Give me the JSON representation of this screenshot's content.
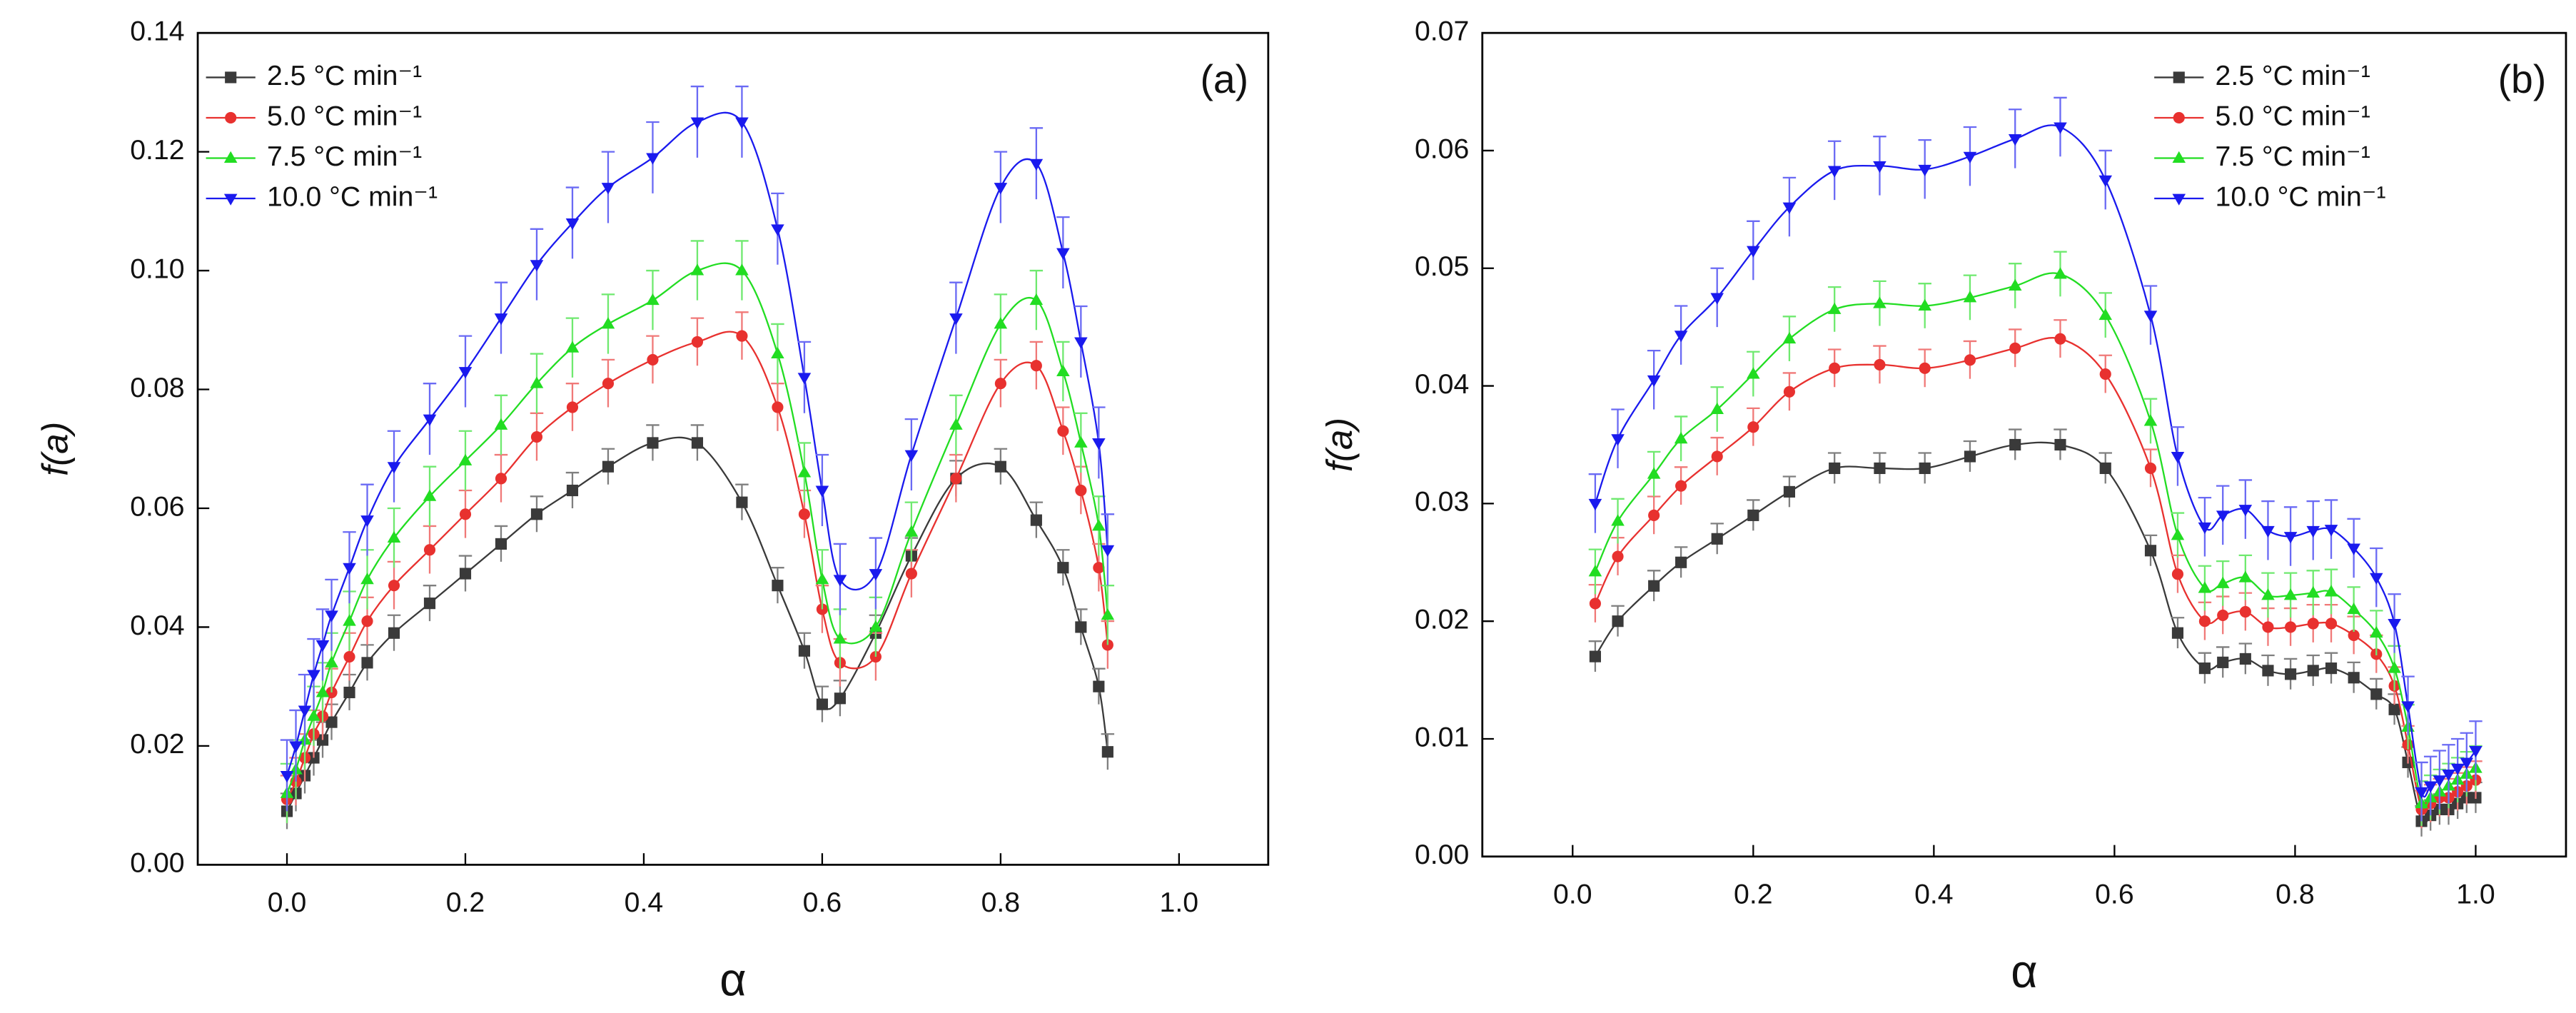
{
  "chart_data": [
    {
      "type": "line",
      "annotation": "(a)",
      "xlabel": "α",
      "ylabel": "f(a)",
      "legend": "upper left",
      "xlim": [
        -0.1,
        1.1
      ],
      "ylim": [
        0,
        0.14
      ],
      "xticks": [
        {
          "value": 0,
          "label": "0.0"
        },
        {
          "value": 0.2,
          "label": "0.2"
        },
        {
          "value": 0.4,
          "label": "0.4"
        },
        {
          "value": 0.6,
          "label": "0.6"
        },
        {
          "value": 0.8,
          "label": "0.8"
        },
        {
          "value": 1,
          "label": "1.0"
        }
      ],
      "yticks": [
        {
          "value": 0,
          "label": "0.00"
        },
        {
          "value": 0.02,
          "label": "0.02"
        },
        {
          "value": 0.04,
          "label": "0.04"
        },
        {
          "value": 0.06,
          "label": "0.06"
        },
        {
          "value": 0.08,
          "label": "0.08"
        },
        {
          "value": 0.1,
          "label": "0.10"
        },
        {
          "value": 0.12,
          "label": "0.12"
        },
        {
          "value": 0.14,
          "label": "0.14"
        }
      ],
      "x": [
        0.0,
        0.01,
        0.02,
        0.03,
        0.04,
        0.05,
        0.07,
        0.09,
        0.12,
        0.16,
        0.2,
        0.24,
        0.28,
        0.32,
        0.36,
        0.41,
        0.46,
        0.51,
        0.55,
        0.58,
        0.6,
        0.62,
        0.66,
        0.7,
        0.75,
        0.8,
        0.84,
        0.87,
        0.89,
        0.91,
        0.92
      ],
      "series": [
        {
          "name": "2.5 °C min⁻¹",
          "color": "#3a3a3a",
          "marker": "square",
          "error": 0.003,
          "values": [
            0.009,
            0.012,
            0.015,
            0.018,
            0.021,
            0.024,
            0.029,
            0.034,
            0.039,
            0.044,
            0.049,
            0.054,
            0.059,
            0.063,
            0.067,
            0.071,
            0.071,
            0.061,
            0.047,
            0.036,
            0.027,
            0.028,
            0.039,
            0.052,
            0.065,
            0.067,
            0.058,
            0.05,
            0.04,
            0.03,
            0.019
          ]
        },
        {
          "name": "5.0 °C min⁻¹",
          "color": "#e8312f",
          "marker": "circle",
          "error": 0.004,
          "values": [
            0.011,
            0.014,
            0.018,
            0.022,
            0.025,
            0.029,
            0.035,
            0.041,
            0.047,
            0.053,
            0.059,
            0.065,
            0.072,
            0.077,
            0.081,
            0.085,
            0.088,
            0.089,
            0.077,
            0.059,
            0.043,
            0.034,
            0.035,
            0.049,
            0.065,
            0.081,
            0.084,
            0.073,
            0.063,
            0.05,
            0.037
          ]
        },
        {
          "name": "7.5 °C min⁻¹",
          "color": "#22dd22",
          "marker": "triangle-up",
          "error": 0.005,
          "values": [
            0.012,
            0.016,
            0.021,
            0.025,
            0.029,
            0.034,
            0.041,
            0.048,
            0.055,
            0.062,
            0.068,
            0.074,
            0.081,
            0.087,
            0.091,
            0.095,
            0.1,
            0.1,
            0.086,
            0.066,
            0.048,
            0.038,
            0.04,
            0.056,
            0.074,
            0.091,
            0.095,
            0.083,
            0.071,
            0.057,
            0.042
          ]
        },
        {
          "name": "10.0 °C min⁻¹",
          "color": "#1a1aee",
          "marker": "triangle-down",
          "error": 0.006,
          "values": [
            0.015,
            0.02,
            0.026,
            0.032,
            0.037,
            0.042,
            0.05,
            0.058,
            0.067,
            0.075,
            0.083,
            0.092,
            0.101,
            0.108,
            0.114,
            0.119,
            0.125,
            0.125,
            0.107,
            0.082,
            0.063,
            0.048,
            0.049,
            0.069,
            0.092,
            0.114,
            0.118,
            0.103,
            0.088,
            0.071,
            0.053
          ]
        }
      ]
    },
    {
      "type": "line",
      "annotation": "(b)",
      "xlabel": "α",
      "ylabel": "f(a)",
      "legend": "upper right",
      "xlim": [
        -0.1,
        1.1
      ],
      "ylim": [
        0,
        0.07
      ],
      "xticks": [
        {
          "value": 0,
          "label": "0.0"
        },
        {
          "value": 0.2,
          "label": "0.2"
        },
        {
          "value": 0.4,
          "label": "0.4"
        },
        {
          "value": 0.6,
          "label": "0.6"
        },
        {
          "value": 0.8,
          "label": "0.8"
        },
        {
          "value": 1,
          "label": "1.0"
        }
      ],
      "yticks": [
        {
          "value": 0,
          "label": "0.00"
        },
        {
          "value": 0.01,
          "label": "0.01"
        },
        {
          "value": 0.02,
          "label": "0.02"
        },
        {
          "value": 0.03,
          "label": "0.03"
        },
        {
          "value": 0.04,
          "label": "0.04"
        },
        {
          "value": 0.05,
          "label": "0.05"
        },
        {
          "value": 0.06,
          "label": "0.06"
        },
        {
          "value": 0.07,
          "label": "0.07"
        }
      ],
      "x": [
        0.025,
        0.05,
        0.09,
        0.12,
        0.16,
        0.2,
        0.24,
        0.29,
        0.34,
        0.39,
        0.44,
        0.49,
        0.54,
        0.59,
        0.64,
        0.67,
        0.7,
        0.72,
        0.745,
        0.77,
        0.795,
        0.82,
        0.84,
        0.865,
        0.89,
        0.91,
        0.925,
        0.94,
        0.95,
        0.96,
        0.97,
        0.98,
        0.99,
        1.0
      ],
      "series": [
        {
          "name": "2.5 °C min⁻¹",
          "color": "#3a3a3a",
          "marker": "square",
          "error": 0.0013,
          "values": [
            0.017,
            0.02,
            0.023,
            0.025,
            0.027,
            0.029,
            0.031,
            0.033,
            0.033,
            0.033,
            0.034,
            0.035,
            0.035,
            0.033,
            0.026,
            0.019,
            0.016,
            0.0165,
            0.0168,
            0.0158,
            0.0155,
            0.0158,
            0.016,
            0.0152,
            0.0138,
            0.0125,
            0.008,
            0.003,
            0.0035,
            0.004,
            0.004,
            0.0045,
            0.005,
            0.005
          ]
        },
        {
          "name": "5.0 °C min⁻¹",
          "color": "#e8312f",
          "marker": "circle",
          "error": 0.0016,
          "values": [
            0.0215,
            0.0255,
            0.029,
            0.0315,
            0.034,
            0.0365,
            0.0395,
            0.0415,
            0.0418,
            0.0415,
            0.0422,
            0.0432,
            0.044,
            0.041,
            0.033,
            0.024,
            0.02,
            0.0205,
            0.0208,
            0.0195,
            0.0195,
            0.0198,
            0.0198,
            0.0188,
            0.0172,
            0.0145,
            0.0095,
            0.004,
            0.0045,
            0.005,
            0.005,
            0.0055,
            0.006,
            0.0065
          ]
        },
        {
          "name": "7.5 °C min⁻¹",
          "color": "#22dd22",
          "marker": "triangle-up",
          "error": 0.0019,
          "values": [
            0.0242,
            0.0285,
            0.0325,
            0.0355,
            0.038,
            0.041,
            0.044,
            0.0465,
            0.047,
            0.0468,
            0.0475,
            0.0485,
            0.0495,
            0.046,
            0.037,
            0.0273,
            0.0228,
            0.0232,
            0.0237,
            0.0222,
            0.0222,
            0.0224,
            0.0225,
            0.021,
            0.019,
            0.016,
            0.011,
            0.0045,
            0.005,
            0.0055,
            0.006,
            0.0065,
            0.007,
            0.0075
          ]
        },
        {
          "name": "10.0 °C min⁻¹",
          "color": "#1a1aee",
          "marker": "triangle-down",
          "error": 0.0025,
          "values": [
            0.03,
            0.0355,
            0.0405,
            0.0443,
            0.0475,
            0.0515,
            0.0552,
            0.0583,
            0.0587,
            0.0584,
            0.0595,
            0.061,
            0.062,
            0.0575,
            0.046,
            0.034,
            0.028,
            0.029,
            0.0295,
            0.0277,
            0.0272,
            0.0277,
            0.0278,
            0.0262,
            0.0237,
            0.0198,
            0.0128,
            0.0055,
            0.006,
            0.0065,
            0.007,
            0.0075,
            0.008,
            0.009
          ]
        }
      ]
    }
  ]
}
